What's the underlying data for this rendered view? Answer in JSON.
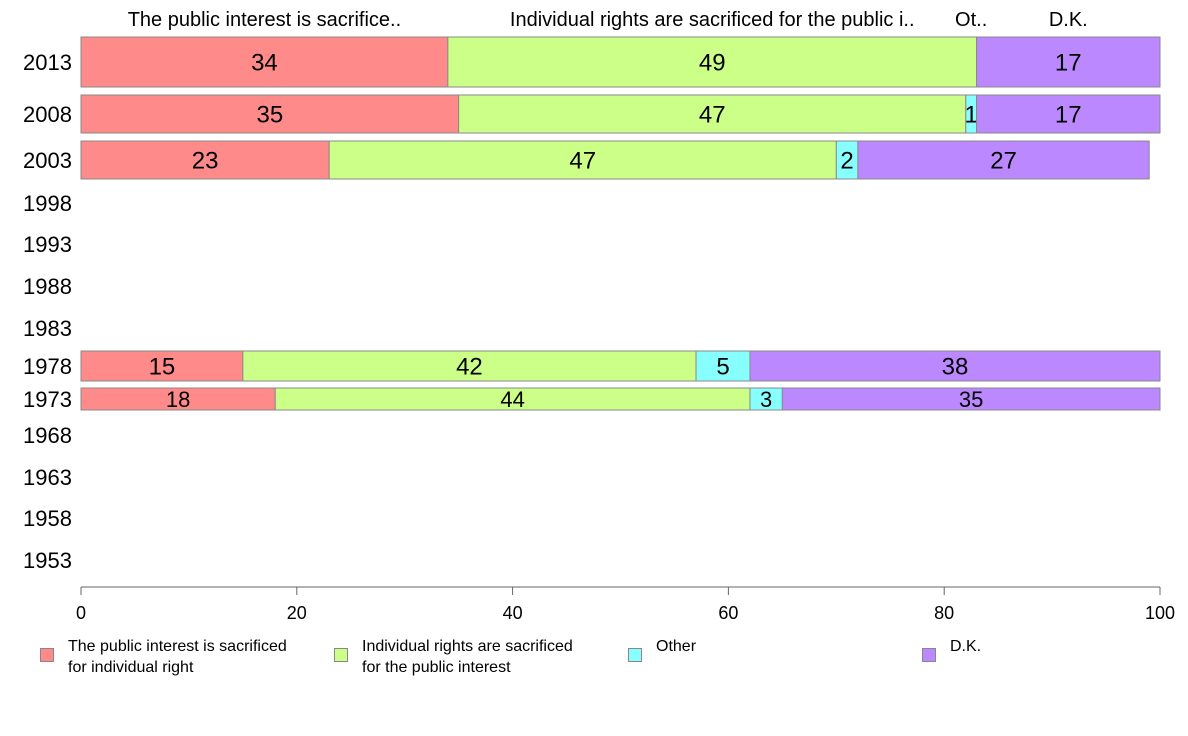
{
  "chart_data": {
    "type": "bar",
    "orientation": "horizontal",
    "stacked": true,
    "categories": [
      "2013",
      "2008",
      "2003",
      "1998",
      "1993",
      "1988",
      "1983",
      "1978",
      "1973",
      "1968",
      "1963",
      "1958",
      "1953"
    ],
    "series": [
      {
        "name": "The public interest is sacrificed for individual right",
        "header": "The public interest is sacrifice..",
        "legend_lines": "The public interest is sacrificed\nfor individual right",
        "color": "#ff8a8a",
        "values": [
          34,
          35,
          23,
          null,
          null,
          null,
          null,
          15,
          18,
          null,
          null,
          null,
          null
        ]
      },
      {
        "name": "Individual rights are sacrificed for the public interest",
        "header": "Individual rights are sacrificed for the public i..",
        "legend_lines": "Individual rights are sacrificed\nfor the public interest",
        "color": "#ccff88",
        "values": [
          49,
          47,
          47,
          null,
          null,
          null,
          null,
          42,
          44,
          null,
          null,
          null,
          null
        ]
      },
      {
        "name": "Other",
        "header": "Ot..",
        "legend_lines": "Other",
        "color": "#88ffff",
        "values": [
          0,
          1,
          2,
          null,
          null,
          null,
          null,
          5,
          3,
          null,
          null,
          null,
          null
        ]
      },
      {
        "name": "D.K.",
        "header": "D.K.",
        "legend_lines": "D.K.",
        "color": "#bb88ff",
        "values": [
          17,
          17,
          27,
          null,
          null,
          null,
          null,
          38,
          35,
          null,
          null,
          null,
          null
        ]
      }
    ],
    "xlim": [
      0,
      100
    ],
    "xticks": [
      0,
      20,
      40,
      60,
      80,
      100
    ],
    "xlabel": "",
    "ylabel": "",
    "grid": false,
    "legend_position": "bottom"
  }
}
